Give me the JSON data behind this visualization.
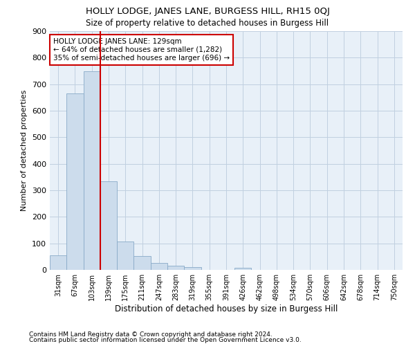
{
  "title": "HOLLY LODGE, JANES LANE, BURGESS HILL, RH15 0QJ",
  "subtitle": "Size of property relative to detached houses in Burgess Hill",
  "xlabel": "Distribution of detached houses by size in Burgess Hill",
  "ylabel": "Number of detached properties",
  "footnote1": "Contains HM Land Registry data © Crown copyright and database right 2024.",
  "footnote2": "Contains public sector information licensed under the Open Government Licence v3.0.",
  "bar_color": "#ccdcec",
  "bar_edge_color": "#88aac8",
  "grid_color": "#c0d0e0",
  "background_color": "#e8f0f8",
  "annotation_box_color": "#cc0000",
  "vline_color": "#cc0000",
  "categories": [
    "31sqm",
    "67sqm",
    "103sqm",
    "139sqm",
    "175sqm",
    "211sqm",
    "247sqm",
    "283sqm",
    "319sqm",
    "355sqm",
    "391sqm",
    "426sqm",
    "462sqm",
    "498sqm",
    "534sqm",
    "570sqm",
    "606sqm",
    "642sqm",
    "678sqm",
    "714sqm",
    "750sqm"
  ],
  "values": [
    55,
    665,
    748,
    335,
    107,
    52,
    27,
    15,
    10,
    0,
    0,
    8,
    0,
    0,
    0,
    0,
    0,
    0,
    0,
    0,
    0
  ],
  "ylim": [
    0,
    900
  ],
  "yticks": [
    0,
    100,
    200,
    300,
    400,
    500,
    600,
    700,
    800,
    900
  ],
  "annotation_text": "HOLLY LODGE JANES LANE: 129sqm\n← 64% of detached houses are smaller (1,282)\n35% of semi-detached houses are larger (696) →",
  "vline_x_index": 2
}
